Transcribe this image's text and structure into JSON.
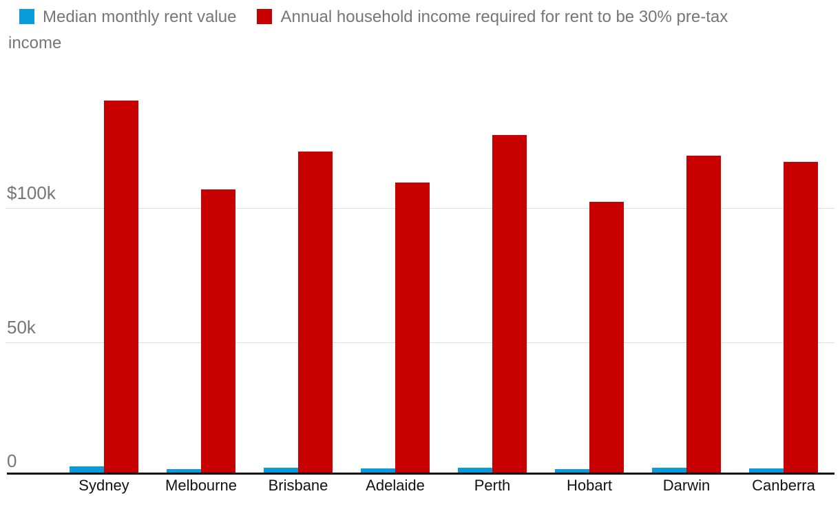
{
  "chart_data": {
    "type": "bar",
    "title": "",
    "xlabel": "",
    "ylabel": "",
    "categories": [
      "Sydney",
      "Melbourne",
      "Brisbane",
      "Adelaide",
      "Perth",
      "Hobart",
      "Darwin",
      "Canberra"
    ],
    "series": [
      {
        "name": "Median monthly rent value",
        "color": "#0a9bdc",
        "values": [
          3500,
          2675,
          3030,
          2740,
          3180,
          2560,
          2990,
          2930
        ]
      },
      {
        "name": "Annual household income required for rent to be 30% pre-tax income",
        "color": "#c70000",
        "values": [
          140000,
          107000,
          121200,
          109600,
          127200,
          102400,
          119600,
          117200
        ]
      }
    ],
    "yticks": [
      {
        "value": 0,
        "label": "0"
      },
      {
        "value": 50000,
        "label": "50k"
      },
      {
        "value": 100000,
        "label": "$100k"
      }
    ],
    "ylim": [
      0,
      150000
    ],
    "grid": "horizontal",
    "legend_position": "top-left"
  },
  "colors": {
    "background": "#ffffff",
    "grid": "#dcdcdc",
    "axis": "#121212",
    "tick_text": "#767676",
    "category_text": "#121212",
    "legend_text": "#767676"
  }
}
